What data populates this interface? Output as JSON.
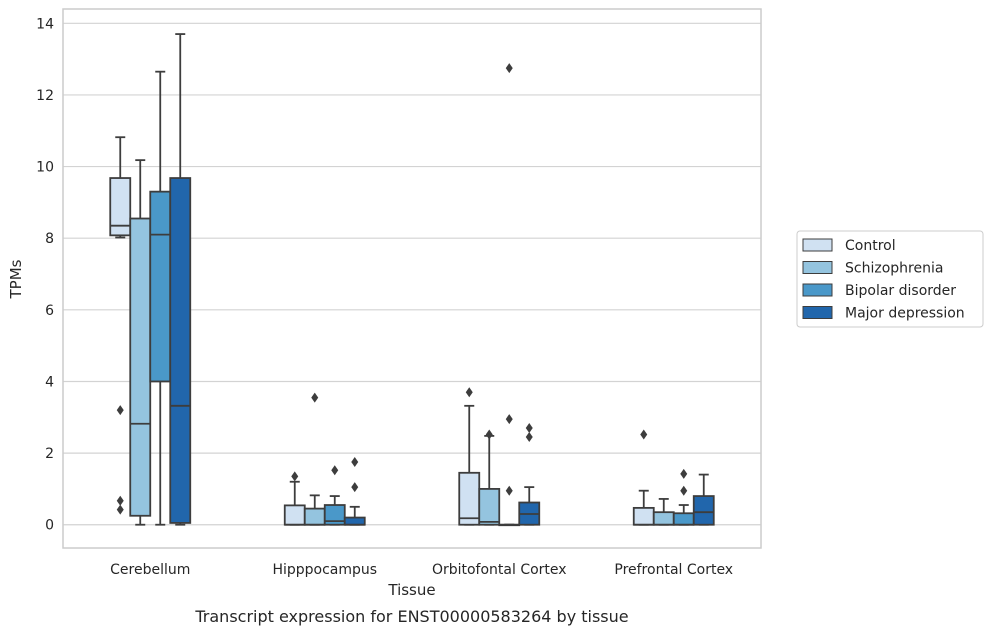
{
  "chart_data": {
    "type": "box",
    "xlabel": "Tissue",
    "ylabel": "TPMs",
    "caption": "Transcript expression for ENST00000583264 by tissue",
    "ylim": [
      -0.65,
      14.4
    ],
    "yticks": [
      0,
      2,
      4,
      6,
      8,
      10,
      12,
      14
    ],
    "grid": true,
    "legend_position": "right",
    "categories": [
      "Cerebellum",
      "Hipppocampus",
      "Orbitofontal Cortex",
      "Prefrontal Cortex"
    ],
    "series": [
      {
        "name": "Control",
        "color": "#d0e1f2",
        "boxes": [
          {
            "whislo": 8.02,
            "q1": 8.08,
            "med": 8.35,
            "q3": 9.68,
            "whishi": 10.82,
            "fliers": [
              3.2,
              0.67,
              0.42
            ]
          },
          {
            "whislo": 0.0,
            "q1": 0.0,
            "med": 0.0,
            "q3": 0.54,
            "whishi": 1.2,
            "fliers": [
              1.35
            ]
          },
          {
            "whislo": 0.0,
            "q1": 0.0,
            "med": 0.18,
            "q3": 1.45,
            "whishi": 3.32,
            "fliers": [
              3.7
            ]
          },
          {
            "whislo": 0.0,
            "q1": 0.0,
            "med": 0.0,
            "q3": 0.47,
            "whishi": 0.95,
            "fliers": [
              2.52
            ]
          }
        ]
      },
      {
        "name": "Schizophrenia",
        "color": "#94c4df",
        "boxes": [
          {
            "whislo": 0.0,
            "q1": 0.25,
            "med": 2.82,
            "q3": 8.55,
            "whishi": 10.18,
            "fliers": []
          },
          {
            "whislo": 0.0,
            "q1": 0.0,
            "med": 0.0,
            "q3": 0.45,
            "whishi": 0.82,
            "fliers": [
              3.55
            ]
          },
          {
            "whislo": 0.0,
            "q1": 0.0,
            "med": 0.08,
            "q3": 1.0,
            "whishi": 2.48,
            "fliers": [
              2.52
            ]
          },
          {
            "whislo": 0.0,
            "q1": 0.0,
            "med": 0.0,
            "q3": 0.35,
            "whishi": 0.72,
            "fliers": []
          }
        ]
      },
      {
        "name": "Bipolar disorder",
        "color": "#4a98c9",
        "boxes": [
          {
            "whislo": 0.0,
            "q1": 4.0,
            "med": 8.1,
            "q3": 9.3,
            "whishi": 12.65,
            "fliers": []
          },
          {
            "whislo": 0.0,
            "q1": 0.0,
            "med": 0.1,
            "q3": 0.55,
            "whishi": 0.8,
            "fliers": [
              1.52
            ]
          },
          {
            "whislo": 0.0,
            "q1": 0.0,
            "med": 0.0,
            "q3": 0.0,
            "whishi": 0.0,
            "fliers": [
              12.75,
              2.95,
              0.95
            ]
          },
          {
            "whislo": 0.0,
            "q1": 0.0,
            "med": 0.0,
            "q3": 0.32,
            "whishi": 0.55,
            "fliers": [
              1.42,
              0.95
            ]
          }
        ]
      },
      {
        "name": "Major depression",
        "color": "#2166ac",
        "boxes": [
          {
            "whislo": 0.0,
            "q1": 0.05,
            "med": 3.32,
            "q3": 9.68,
            "whishi": 13.7,
            "fliers": []
          },
          {
            "whislo": 0.0,
            "q1": 0.0,
            "med": 0.0,
            "q3": 0.2,
            "whishi": 0.5,
            "fliers": [
              1.75,
              1.05
            ]
          },
          {
            "whislo": 0.0,
            "q1": 0.0,
            "med": 0.3,
            "q3": 0.62,
            "whishi": 1.05,
            "fliers": [
              2.7,
              2.45
            ]
          },
          {
            "whislo": 0.0,
            "q1": 0.0,
            "med": 0.35,
            "q3": 0.8,
            "whishi": 1.4,
            "fliers": []
          }
        ]
      }
    ]
  }
}
